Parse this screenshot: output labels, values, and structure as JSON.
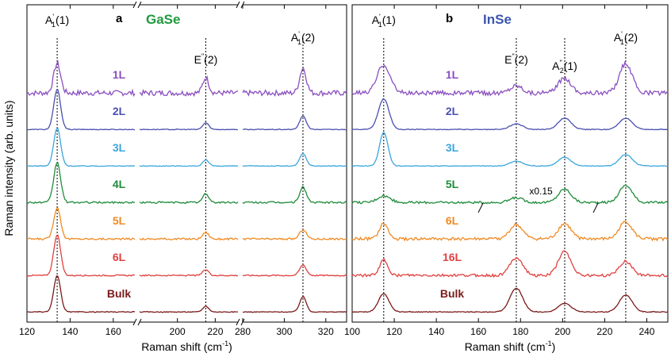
{
  "ylabel": "Raman intensity (arb. units)",
  "chart_data": [
    {
      "type": "line",
      "panel_letter": "a",
      "material": "GaSe",
      "material_color": "#1f9a3c",
      "xlabel": "Raman shift (cm",
      "xlabel_sup": "-1",
      "xlabel_end": ")",
      "broken_axis": true,
      "x_segments": [
        {
          "range": [
            120,
            170
          ],
          "ticks": [
            120,
            140,
            160
          ]
        },
        {
          "range": [
            180,
            232
          ],
          "ticks": [
            200,
            220
          ]
        },
        {
          "range": [
            280,
            330
          ],
          "ticks": [
            280,
            300,
            320
          ]
        }
      ],
      "peaks": [
        {
          "x": 134,
          "label": "A",
          "sup": "'",
          "sub": "1",
          "tail": "(1)"
        },
        {
          "x": 215,
          "label": "E",
          "sup": "\"",
          "sub": "",
          "tail": "(2)"
        },
        {
          "x": 309,
          "label": "A",
          "sup": "'",
          "sub": "1",
          "tail": "(2)"
        }
      ],
      "series": [
        {
          "name": "1L",
          "color": "#8a4fc0",
          "offset": 6,
          "noise": 0.35,
          "amps": [
            3.1,
            1.6,
            2.6
          ],
          "widths": [
            1.6,
            1.6,
            1.6
          ]
        },
        {
          "name": "2L",
          "color": "#4a4fb0",
          "offset": 5,
          "noise": 0.05,
          "amps": [
            4.2,
            0.7,
            1.4
          ],
          "widths": [
            1.6,
            1.6,
            1.6
          ]
        },
        {
          "name": "3L",
          "color": "#3aa6dc",
          "offset": 4,
          "noise": 0.05,
          "amps": [
            4.0,
            0.6,
            1.3
          ],
          "widths": [
            1.6,
            1.6,
            1.6
          ]
        },
        {
          "name": "4L",
          "color": "#1f8c3b",
          "offset": 3,
          "noise": 0.12,
          "amps": [
            4.2,
            0.9,
            1.6
          ],
          "widths": [
            1.6,
            1.6,
            1.6
          ]
        },
        {
          "name": "5L",
          "color": "#f08a24",
          "offset": 2,
          "noise": 0.12,
          "amps": [
            3.3,
            0.7,
            1.0
          ],
          "widths": [
            1.6,
            1.6,
            1.6
          ]
        },
        {
          "name": "6L",
          "color": "#e0413f",
          "offset": 1,
          "noise": 0.08,
          "amps": [
            4.3,
            0.6,
            1.1
          ],
          "widths": [
            1.6,
            1.6,
            1.6
          ]
        },
        {
          "name": "Bulk",
          "color": "#7a1a1a",
          "offset": 0,
          "noise": 0.05,
          "amps": [
            3.8,
            0.6,
            1.6
          ],
          "widths": [
            1.6,
            1.6,
            1.6
          ]
        }
      ]
    },
    {
      "type": "line",
      "panel_letter": "b",
      "material": "InSe",
      "material_color": "#3b56b0",
      "xlabel": "Raman shift (cm",
      "xlabel_sup": "-1",
      "xlabel_end": ")",
      "broken_axis": false,
      "x_segments": [
        {
          "range": [
            100,
            250
          ],
          "ticks": [
            100,
            120,
            140,
            160,
            180,
            200,
            220,
            240
          ]
        }
      ],
      "peaks": [
        {
          "x": 115,
          "label": "A",
          "sup": "'",
          "sub": "1",
          "tail": "(1)"
        },
        {
          "x": 178,
          "label": "E",
          "sup": "\"",
          "sub": "",
          "tail": "(2)"
        },
        {
          "x": 201,
          "label": "A",
          "sup": "\"",
          "sub": "2",
          "tail": "(1)"
        },
        {
          "x": 230,
          "label": "A",
          "sup": "'",
          "sub": "1",
          "tail": "(2)"
        }
      ],
      "annotation": "x0.15",
      "series": [
        {
          "name": "1L",
          "color": "#8a4fc0",
          "offset": 6,
          "noise": 0.3,
          "amps": [
            3.0,
            0.8,
            1.6,
            3.1
          ],
          "widths": [
            3,
            3,
            3,
            3
          ]
        },
        {
          "name": "2L",
          "color": "#4a4fb0",
          "offset": 5,
          "noise": 0.05,
          "amps": [
            3.2,
            0.6,
            1.2,
            1.2
          ],
          "widths": [
            2.5,
            3,
            3,
            3
          ]
        },
        {
          "name": "3L",
          "color": "#3aa6dc",
          "offset": 4,
          "noise": 0.05,
          "amps": [
            3.5,
            0.5,
            0.9,
            1.2
          ],
          "widths": [
            2,
            3,
            3,
            3
          ]
        },
        {
          "name": "5L",
          "color": "#1f8c3b",
          "offset": 3,
          "noise": 0.15,
          "amps": [
            0.7,
            0.5,
            1.4,
            1.8
          ],
          "widths": [
            3,
            3,
            3,
            3
          ]
        },
        {
          "name": "6L",
          "color": "#f08a24",
          "offset": 2,
          "noise": 0.2,
          "amps": [
            1.6,
            1.5,
            1.6,
            1.8
          ],
          "widths": [
            2,
            3,
            3,
            3
          ]
        },
        {
          "name": "16L",
          "color": "#e0413f",
          "offset": 1,
          "noise": 0.18,
          "amps": [
            1.6,
            1.9,
            2.5,
            1.5
          ],
          "widths": [
            2,
            3,
            3,
            3
          ]
        },
        {
          "name": "Bulk",
          "color": "#7a1a1a",
          "offset": 0,
          "noise": 0.05,
          "amps": [
            1.9,
            2.5,
            0.9,
            1.8
          ],
          "widths": [
            2.5,
            3,
            3,
            3
          ]
        }
      ]
    }
  ]
}
